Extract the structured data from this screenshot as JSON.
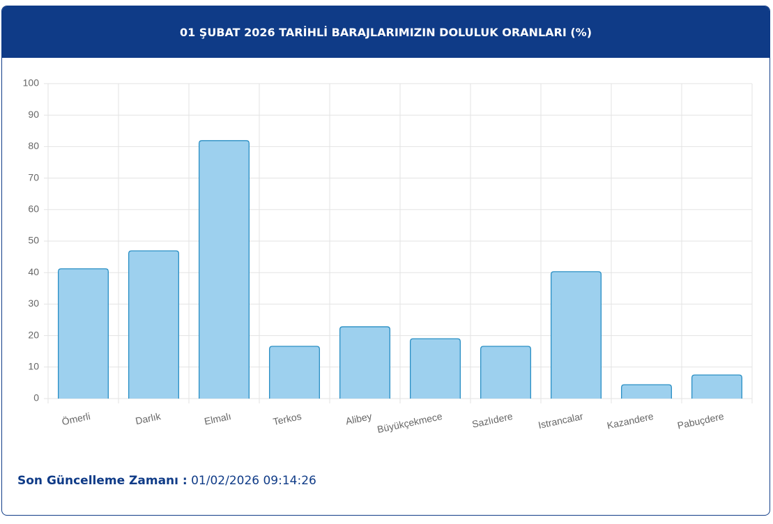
{
  "chart_data": {
    "type": "bar",
    "title": "01 ŞUBAT 2026 TARİHLİ BARAJLARIMIZIN DOLULUK ORANLARI (%)",
    "categories": [
      "Ömerli",
      "Darlık",
      "Elmalı",
      "Terkos",
      "Alibey",
      "Büyükçekmece",
      "Sazlıdere",
      "Istrancalar",
      "Kazandere",
      "Pabuçdere"
    ],
    "values": [
      41.2,
      46.9,
      81.9,
      16.6,
      22.8,
      19.0,
      16.6,
      40.3,
      4.4,
      7.5
    ],
    "color": "#9dd0ee",
    "edge_color": "#2a8fc4",
    "ylim": [
      0,
      100
    ],
    "yticks": [
      0,
      10,
      20,
      30,
      40,
      50,
      60,
      70,
      80,
      90,
      100
    ],
    "grid": true
  },
  "footer": {
    "label": "Son Güncelleme Zamanı :",
    "value": "01/02/2026 09:14:26"
  }
}
